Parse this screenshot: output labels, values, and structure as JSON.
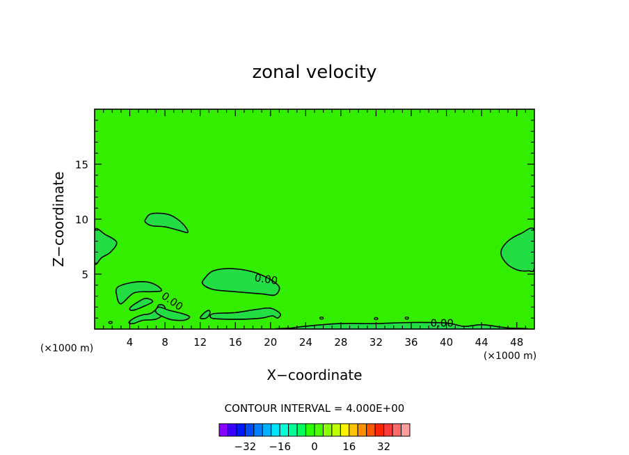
{
  "chart_data": {
    "type": "contour",
    "title": "zonal velocity",
    "xlabel": "X−coordinate",
    "ylabel": "Z−coordinate",
    "x_unit_left": "(×1000 m)",
    "x_unit_right": "(×1000 m)",
    "xlim": [
      0,
      50
    ],
    "ylim": [
      0,
      20
    ],
    "x_ticks": [
      4,
      8,
      12,
      16,
      20,
      24,
      28,
      32,
      36,
      40,
      44,
      48
    ],
    "x_tick_labels": [
      "4",
      "8",
      "12",
      "16",
      "20",
      "24",
      "28",
      "32",
      "36",
      "40",
      "44",
      "48"
    ],
    "y_ticks": [
      5,
      10,
      15
    ],
    "y_tick_labels": [
      "5",
      "10",
      "15"
    ],
    "background_fill": "#33ee00",
    "background_value": "0 to 4",
    "contour_interval_text": "CONTOUR INTERVAL = 4.000E+00",
    "contour_labels": [
      {
        "text": "0.00",
        "x": 19.5,
        "y": 4.5,
        "rotation": -8
      },
      {
        "text": "0.00",
        "x": 8.8,
        "y": 2.5,
        "rotation": -35
      },
      {
        "text": "0.00",
        "x": 39.5,
        "y": 0.5,
        "rotation": 0
      }
    ],
    "regions": [
      {
        "name": "upper-mid-cell",
        "fill": "#22dd44",
        "points": [
          [
            5.8,
            10.0
          ],
          [
            6.5,
            10.5
          ],
          [
            8.5,
            10.4
          ],
          [
            10.0,
            9.6
          ],
          [
            10.6,
            8.8
          ],
          [
            9.5,
            9.0
          ],
          [
            8.0,
            9.3
          ],
          [
            6.5,
            9.4
          ],
          [
            5.8,
            9.7
          ]
        ]
      },
      {
        "name": "left-edge-cell",
        "fill": "#22dd44",
        "points": [
          [
            0,
            9.0
          ],
          [
            1.2,
            8.6
          ],
          [
            2.5,
            7.9
          ],
          [
            1.8,
            7.0
          ],
          [
            0.8,
            6.5
          ],
          [
            0,
            6.0
          ]
        ]
      },
      {
        "name": "right-edge-cell",
        "fill": "#22dd44",
        "points": [
          [
            50,
            9.0
          ],
          [
            48.5,
            8.7
          ],
          [
            47.0,
            8.0
          ],
          [
            46.2,
            7.0
          ],
          [
            46.8,
            6.0
          ],
          [
            48.0,
            5.4
          ],
          [
            49.3,
            5.3
          ],
          [
            50,
            5.6
          ]
        ]
      },
      {
        "name": "mid-upper-cell",
        "fill": "#22dd44",
        "points": [
          [
            12.5,
            4.6
          ],
          [
            13.5,
            5.3
          ],
          [
            15.5,
            5.5
          ],
          [
            18.0,
            5.2
          ],
          [
            20.0,
            4.5
          ],
          [
            21.0,
            3.8
          ],
          [
            20.5,
            3.1
          ],
          [
            19.0,
            3.2
          ],
          [
            16.0,
            3.4
          ],
          [
            13.5,
            3.6
          ],
          [
            12.3,
            4.1
          ]
        ]
      },
      {
        "name": "left-lower-cell",
        "fill": "#22dd44",
        "points": [
          [
            2.5,
            3.1
          ],
          [
            2.6,
            3.8
          ],
          [
            4.0,
            4.2
          ],
          [
            5.8,
            4.3
          ],
          [
            7.0,
            4.0
          ],
          [
            7.6,
            3.5
          ],
          [
            6.5,
            3.4
          ],
          [
            4.5,
            3.3
          ],
          [
            3.0,
            2.3
          ]
        ]
      },
      {
        "name": "left-low-streak",
        "fill": "#22dd44",
        "points": [
          [
            4.0,
            1.9
          ],
          [
            4.8,
            2.4
          ],
          [
            5.8,
            2.8
          ],
          [
            6.6,
            2.5
          ],
          [
            5.4,
            2.0
          ],
          [
            4.3,
            1.7
          ]
        ]
      },
      {
        "name": "low-streak-a",
        "fill": "#22dd44",
        "points": [
          [
            3.9,
            0.6
          ],
          [
            4.5,
            1.0
          ],
          [
            5.5,
            1.3
          ],
          [
            6.3,
            1.4
          ],
          [
            7.0,
            1.8
          ],
          [
            7.3,
            2.2
          ],
          [
            7.9,
            2.1
          ],
          [
            8.0,
            1.5
          ],
          [
            7.0,
            0.9
          ],
          [
            5.5,
            0.8
          ],
          [
            4.4,
            0.5
          ]
        ]
      },
      {
        "name": "low-streak-b",
        "fill": "#22dd44",
        "points": [
          [
            7.0,
            1.5
          ],
          [
            7.3,
            2.0
          ],
          [
            8.5,
            1.7
          ],
          [
            10.0,
            1.4
          ],
          [
            10.8,
            1.1
          ],
          [
            10.1,
            0.8
          ],
          [
            8.5,
            0.9
          ]
        ]
      },
      {
        "name": "low-streak-c",
        "fill": "#22dd44",
        "points": [
          [
            12.0,
            1.0
          ],
          [
            12.5,
            1.5
          ],
          [
            13.0,
            1.7
          ],
          [
            13.1,
            1.4
          ],
          [
            12.7,
            1.0
          ]
        ]
      },
      {
        "name": "low-streak-d",
        "fill": "#22dd44",
        "points": [
          [
            13.3,
            1.0
          ],
          [
            13.5,
            1.4
          ],
          [
            16.0,
            1.5
          ],
          [
            18.5,
            1.8
          ],
          [
            20.0,
            1.9
          ],
          [
            21.1,
            1.4
          ],
          [
            20.8,
            1.0
          ],
          [
            20.2,
            1.2
          ],
          [
            19.0,
            1.0
          ],
          [
            17.0,
            0.9
          ],
          [
            15.0,
            0.9
          ]
        ]
      },
      {
        "name": "surface-band",
        "fill": "#22dd44",
        "points": [
          [
            22.5,
            0.1
          ],
          [
            24.5,
            0.3
          ],
          [
            28.0,
            0.5
          ],
          [
            32.0,
            0.5
          ],
          [
            36.0,
            0.6
          ],
          [
            40.0,
            0.55
          ],
          [
            42.0,
            0.25
          ],
          [
            44.0,
            0.4
          ],
          [
            46.0,
            0.2
          ],
          [
            47.0,
            0.1
          ],
          [
            47.5,
            0.0
          ],
          [
            22.5,
            0.0
          ]
        ]
      }
    ],
    "small_marks": [
      [
        1.8,
        0.6
      ],
      [
        25.8,
        1.0
      ],
      [
        32.0,
        0.95
      ],
      [
        35.5,
        1.0
      ]
    ],
    "colorbar": {
      "colors": [
        "#8800ff",
        "#3a00ff",
        "#0018ff",
        "#004bff",
        "#0081ff",
        "#00b1ff",
        "#00e3ff",
        "#00ffd6",
        "#00ff99",
        "#00ff5e",
        "#2bff00",
        "#4cff00",
        "#8cff00",
        "#bfff00",
        "#fff200",
        "#ffc400",
        "#ff8e00",
        "#ff5600",
        "#ff2400",
        "#ff3a3a",
        "#ff6a6a",
        "#ff9e9e"
      ],
      "labels": [
        "−32",
        "−16",
        "0",
        "16",
        "32"
      ],
      "label_positions": [
        -32,
        -16,
        0,
        16,
        32
      ],
      "range": [
        -44,
        44
      ]
    }
  }
}
